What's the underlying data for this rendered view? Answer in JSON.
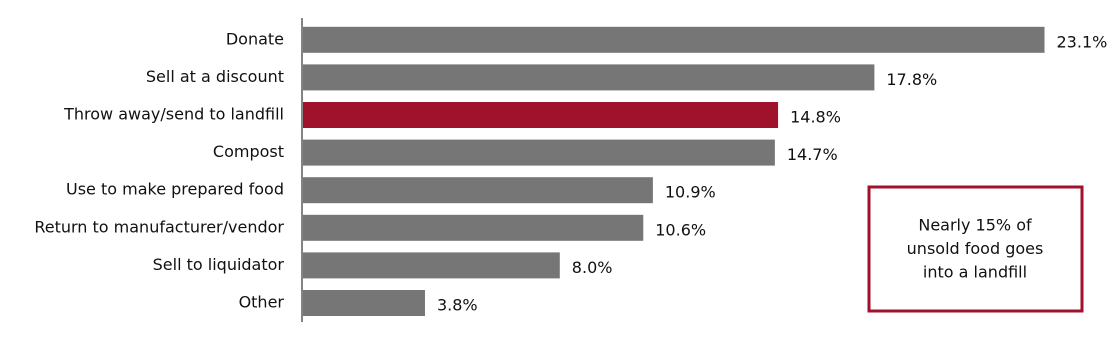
{
  "chart_data": {
    "type": "barh",
    "categories": [
      "Donate",
      "Sell at a discount",
      "Throw away/send to landfill",
      "Compost",
      "Use to make prepared food",
      "Return to manufacturer/vendor",
      "Sell to liquidator",
      "Other"
    ],
    "values": [
      23.1,
      17.8,
      14.8,
      14.7,
      10.9,
      10.6,
      8.0,
      3.8
    ],
    "value_labels": [
      "23.1%",
      "17.8%",
      "14.8%",
      "14.7%",
      "10.9%",
      "10.6%",
      "8.0%",
      "3.8%"
    ],
    "colors": [
      "#767676",
      "#767676",
      "#a0112b",
      "#767676",
      "#767676",
      "#767676",
      "#767676",
      "#767676"
    ],
    "annotation": [
      "Nearly 15% of",
      "unsold food goes",
      "into a landfill"
    ],
    "annotation_border_color": "#a0112b"
  }
}
